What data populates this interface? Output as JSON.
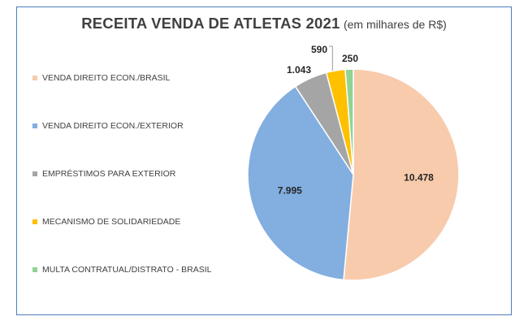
{
  "chart_data": {
    "type": "pie",
    "title": "RECEITA VENDA DE ATLETAS 2021",
    "subtitle": "(em milhares de R$)",
    "legend_position": "left",
    "slices": [
      {
        "label": "VENDA DIREITO ECON./BRASIL",
        "value": 10478,
        "display": "10.478",
        "color": "#f8cbad"
      },
      {
        "label": "VENDA DIREITO ECON./EXTERIOR",
        "value": 7995,
        "display": "7.995",
        "color": "#82aee0"
      },
      {
        "label": "EMPRÉSTIMOS PARA EXTERIOR",
        "value": 1043,
        "display": "1.043",
        "color": "#a5a5a5"
      },
      {
        "label": "MECANISMO DE SOLIDARIEDADE",
        "value": 590,
        "display": "590",
        "color": "#ffc000"
      },
      {
        "label": "MULTA CONTRATUAL/DISTRATO - BRASIL",
        "value": 250,
        "display": "250",
        "color": "#92d393"
      }
    ]
  }
}
